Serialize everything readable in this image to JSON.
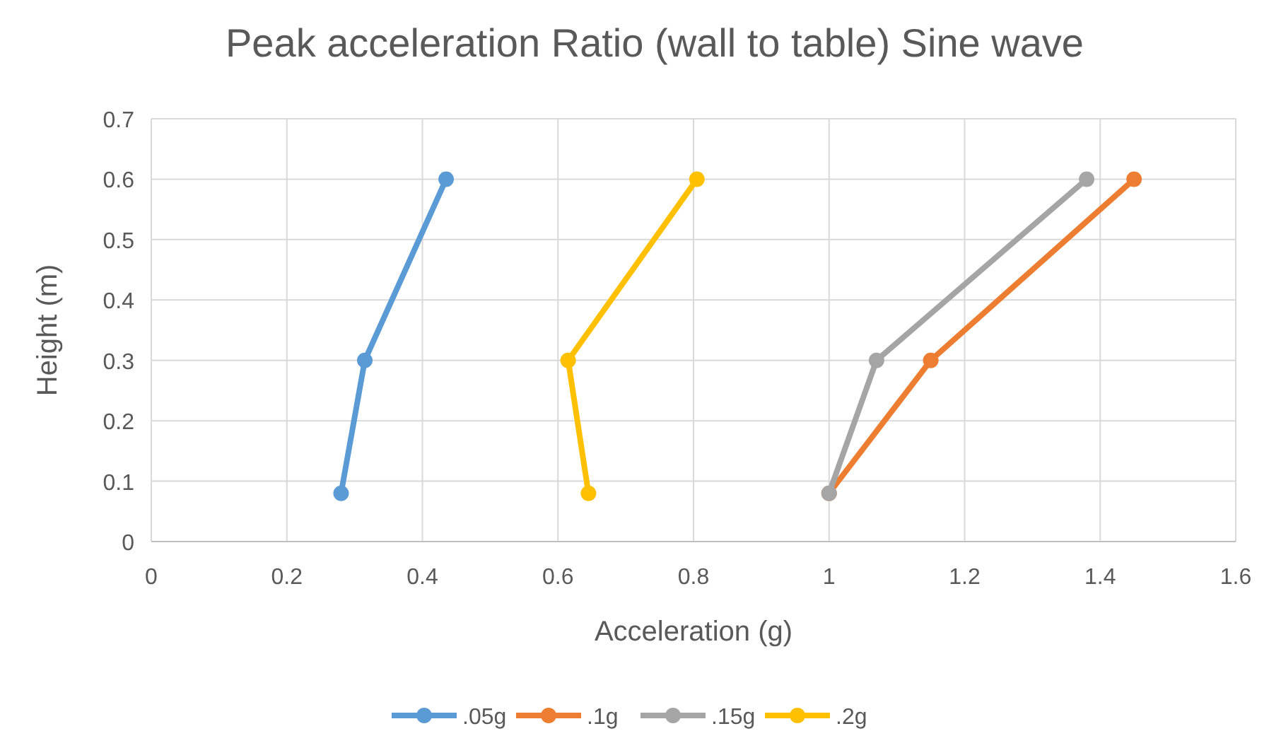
{
  "chart_data": {
    "type": "line",
    "title": "Peak acceleration Ratio (wall to table) Sine wave",
    "xlabel": "Acceleration (g)",
    "ylabel": "Height (m)",
    "xlim": [
      0,
      1.6
    ],
    "xticks": [
      0,
      0.2,
      0.4,
      0.6,
      0.8,
      1,
      1.2,
      1.4,
      1.6
    ],
    "ylim": [
      0,
      0.7
    ],
    "yticks": [
      0,
      0.1,
      0.2,
      0.3,
      0.4,
      0.5,
      0.6,
      0.7
    ],
    "grid": true,
    "legend": "bottom",
    "marker": "circle",
    "line_style": "solid",
    "series": [
      {
        "name": ".05g",
        "color": "#5b9bd5",
        "x": [
          0.28,
          0.315,
          0.435
        ],
        "values": [
          0.08,
          0.3,
          0.6
        ]
      },
      {
        "name": ".1g",
        "color": "#ed7d31",
        "x": [
          1.0,
          1.15,
          1.45
        ],
        "values": [
          0.08,
          0.3,
          0.6
        ]
      },
      {
        "name": ".15g",
        "color": "#a5a5a5",
        "x": [
          1.0,
          1.07,
          1.38
        ],
        "values": [
          0.08,
          0.3,
          0.6
        ]
      },
      {
        "name": ".2g",
        "color": "#ffc000",
        "x": [
          0.645,
          0.615,
          0.805
        ],
        "values": [
          0.08,
          0.3,
          0.6
        ]
      }
    ]
  }
}
